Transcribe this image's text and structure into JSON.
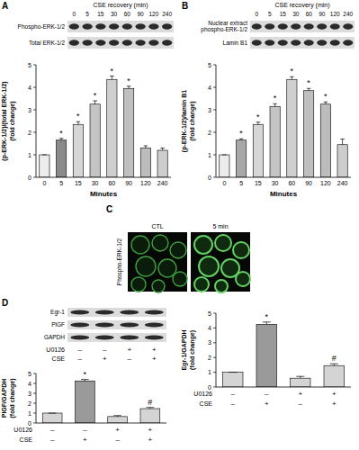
{
  "chart_data": [
    {
      "type": "bar",
      "categories": [
        "0",
        "5",
        "15",
        "30",
        "60",
        "90",
        "120",
        "240"
      ],
      "values": [
        1,
        1.65,
        2.35,
        3.25,
        4.35,
        3.95,
        1.3,
        1.2
      ],
      "errors": [
        0,
        0.08,
        0.12,
        0.15,
        0.15,
        0.1,
        0.1,
        0.1
      ],
      "colors": [
        "#ececec",
        "#8a8a8a",
        "#d6d6d6",
        "#c4c4c4",
        "#cfcfcf",
        "#bfbfbf",
        "#bcbcbc",
        "#cdcdcd"
      ],
      "x_label": "Minutes",
      "y_label": [
        "(p-ERK-1/2)/(total ERK-1/2)",
        "(fold change)"
      ],
      "ylim": [
        0,
        5
      ],
      "yticks": [
        0,
        1,
        2,
        3,
        4,
        5
      ],
      "annotations": [
        {
          "index": 1,
          "text": "*"
        },
        {
          "index": 2,
          "text": "*"
        },
        {
          "index": 3,
          "text": "*"
        },
        {
          "index": 4,
          "text": "*"
        },
        {
          "index": 5,
          "text": "*"
        }
      ]
    },
    {
      "type": "bar",
      "categories": [
        "0",
        "5",
        "15",
        "30",
        "60",
        "90",
        "120",
        "240"
      ],
      "values": [
        1,
        1.65,
        2.35,
        3.15,
        4.35,
        3.85,
        3.25,
        1.45
      ],
      "errors": [
        0,
        0.06,
        0.1,
        0.12,
        0.12,
        0.1,
        0.1,
        0.25
      ],
      "colors": [
        "#ececec",
        "#a8a8a8",
        "#d6d6d6",
        "#c4c4c4",
        "#cfcfcf",
        "#bfbfbf",
        "#bcbcbc",
        "#cdcdcd"
      ],
      "x_label": "Minutes",
      "y_label": [
        "(p-ERK-1/2)/lamin B1",
        "(fold change)"
      ],
      "ylim": [
        0,
        5
      ],
      "yticks": [
        0,
        1,
        2,
        3,
        4,
        5
      ],
      "annotations": [
        {
          "index": 1,
          "text": "*"
        },
        {
          "index": 2,
          "text": "*"
        },
        {
          "index": 3,
          "text": "*"
        },
        {
          "index": 4,
          "text": "*"
        },
        {
          "index": 5,
          "text": "*"
        },
        {
          "index": 6,
          "text": "*"
        }
      ]
    },
    {
      "type": "bar",
      "values": [
        1,
        4.25,
        0.6,
        1.45
      ],
      "errors": [
        0,
        0.15,
        0.12,
        0.12
      ],
      "colors": [
        "#d4d4d4",
        "#9a9a9a",
        "#d4d4d4",
        "#d4d4d4"
      ],
      "y_label": [
        "Egr-1/GAPDH",
        "(fold change)"
      ],
      "ylim": [
        0,
        5
      ],
      "yticks": [
        0,
        1,
        2,
        3,
        4,
        5
      ],
      "x_conditions": [
        {
          "label": "U0126",
          "signs": [
            "–",
            "–",
            "+",
            "+"
          ]
        },
        {
          "label": "CSE",
          "signs": [
            "–",
            "+",
            "–",
            "+"
          ]
        }
      ],
      "annotations": [
        {
          "index": 1,
          "text": "*"
        },
        {
          "index": 3,
          "text": "#"
        }
      ]
    },
    {
      "type": "bar",
      "values": [
        1,
        4.25,
        0.65,
        1.45
      ],
      "errors": [
        0,
        0.15,
        0.1,
        0.12
      ],
      "colors": [
        "#d4d4d4",
        "#9a9a9a",
        "#d4d4d4",
        "#d4d4d4"
      ],
      "y_label": [
        "PlGF/GAPDH",
        "(fold change)"
      ],
      "ylim": [
        0,
        5
      ],
      "yticks": [
        0,
        1,
        2,
        3,
        4,
        5
      ],
      "x_conditions": [
        {
          "label": "U0126",
          "signs": [
            "–",
            "–",
            "+",
            "+"
          ]
        },
        {
          "label": "CSE",
          "signs": [
            "–",
            "+",
            "–",
            "+"
          ]
        }
      ],
      "annotations": [
        {
          "index": 1,
          "text": "*"
        },
        {
          "index": 3,
          "text": "#"
        }
      ]
    }
  ],
  "panel_labels": [
    "A",
    "B",
    "C",
    "D"
  ],
  "blots": [
    {
      "header": "CSE recovery (min)",
      "lanes": [
        "0",
        "5",
        "15",
        "30",
        "60",
        "90",
        "120",
        "240"
      ],
      "rows": [
        [
          "Phospho-ERK-1/2"
        ],
        [
          "Total ERK-1/2"
        ]
      ]
    },
    {
      "header": "CSE recovery (min)",
      "lanes": [
        "0",
        "5",
        "15",
        "30",
        "60",
        "90",
        "120",
        "240"
      ],
      "rows": [
        [
          "Nuclear extract",
          "phospho-ERK-1/2"
        ],
        [
          "Lamin B1"
        ]
      ]
    },
    {
      "rows": [
        [
          "Egr-1"
        ],
        [
          "PlGF"
        ],
        [
          "GAPDH"
        ]
      ],
      "conditions": [
        {
          "label": "U0126",
          "signs": [
            "–",
            "–",
            "+",
            "+"
          ]
        },
        {
          "label": "CSE",
          "signs": [
            "–",
            "+",
            "–",
            "+"
          ]
        }
      ]
    }
  ],
  "micrographs": {
    "row_label": "Phospho-ERK-1/2",
    "columns": [
      "CTL",
      "5 min"
    ]
  }
}
